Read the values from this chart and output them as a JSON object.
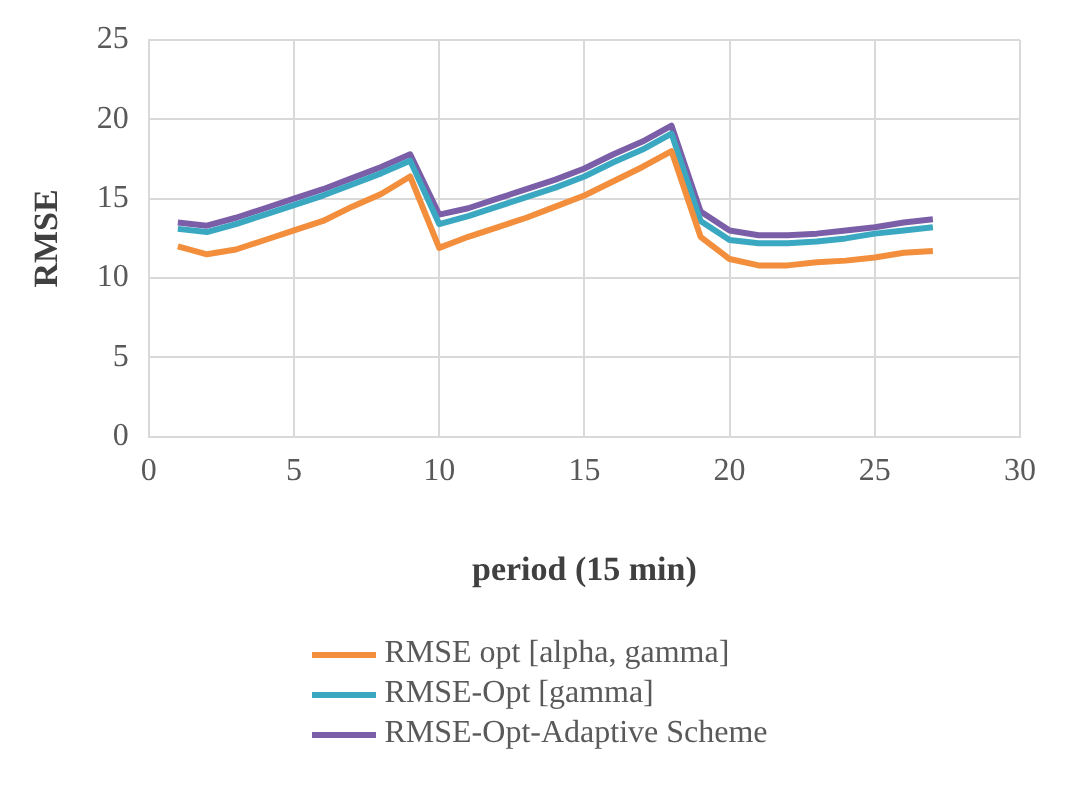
{
  "chart_data": {
    "type": "line",
    "xlabel": "period (15 min)",
    "ylabel": "RMSE",
    "xlim": [
      0,
      30
    ],
    "xticks": [
      0,
      5,
      10,
      15,
      20,
      25,
      30
    ],
    "ylim": [
      0,
      25
    ],
    "yticks": [
      0,
      5,
      10,
      15,
      20,
      25
    ],
    "grid": true,
    "legend": "bottom",
    "marker": "none",
    "x": [
      1,
      2,
      3,
      4,
      5,
      6,
      7,
      8,
      9,
      10,
      11,
      12,
      13,
      14,
      15,
      16,
      17,
      18,
      19,
      20,
      21,
      22,
      23,
      24,
      25,
      26,
      27
    ],
    "series": [
      {
        "name": "RMSE opt [alpha, gamma]",
        "color": "#f28e3c",
        "values": [
          12.0,
          11.5,
          11.8,
          12.4,
          13.0,
          13.6,
          14.5,
          15.3,
          16.4,
          11.9,
          12.6,
          13.2,
          13.8,
          14.5,
          15.2,
          16.1,
          17.0,
          18.0,
          12.6,
          11.2,
          10.8,
          10.8,
          11.0,
          11.1,
          11.3,
          11.6,
          11.7
        ]
      },
      {
        "name": "RMSE-Opt [gamma]",
        "color": "#3aa8c1",
        "values": [
          13.1,
          12.9,
          13.4,
          14.0,
          14.6,
          15.2,
          15.9,
          16.6,
          17.4,
          13.4,
          13.9,
          14.5,
          15.1,
          15.7,
          16.4,
          17.3,
          18.1,
          19.1,
          13.6,
          12.4,
          12.2,
          12.2,
          12.3,
          12.5,
          12.8,
          13.0,
          13.2
        ]
      },
      {
        "name": "RMSE-Opt-Adaptive Scheme",
        "color": "#7b5ea8",
        "values": [
          13.5,
          13.3,
          13.8,
          14.4,
          15.0,
          15.6,
          16.3,
          17.0,
          17.8,
          14.0,
          14.4,
          15.0,
          15.6,
          16.2,
          16.9,
          17.8,
          18.6,
          19.6,
          14.2,
          13.0,
          12.7,
          12.7,
          12.8,
          13.0,
          13.2,
          13.5,
          13.7
        ]
      }
    ]
  }
}
